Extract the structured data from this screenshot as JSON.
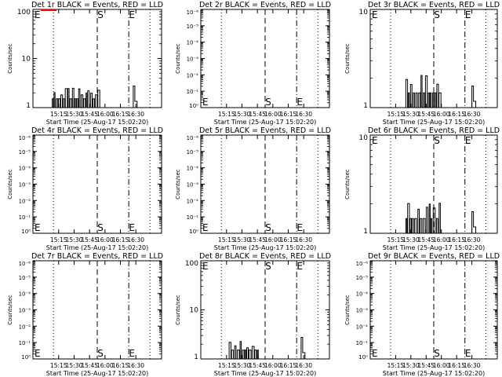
{
  "chart_data": [
    {
      "type": "line",
      "title": "Det 1r BLACK = Events, RED = LLD",
      "ylabel": "Counts/sec",
      "xlabel": "Start Time (25-Aug-17 15:02:20)",
      "yscale": "log",
      "ylim": [
        1,
        100
      ],
      "yticks": [
        "1",
        "10",
        "100"
      ],
      "xticks": [
        "15:15",
        "15:30",
        "15:45",
        "16:00",
        "16:15",
        "16:30"
      ],
      "markers": [
        {
          "label": "E",
          "pos": "left"
        },
        {
          "label": "S",
          "pos": "s"
        },
        {
          "label": "E",
          "pos": "e"
        }
      ],
      "red_lld_at_top": true,
      "series": [
        {
          "name": "BLACK",
          "color": "#000000",
          "segments": [
            [
              0.15,
              0.52,
              "dense"
            ],
            [
              0.78,
              0.81,
              "small"
            ]
          ]
        }
      ]
    },
    {
      "type": "line",
      "title": "Det 2r BLACK = Events, RED = LLD",
      "ylabel": "Counts/sec",
      "xlabel": "Start Time (25-Aug-17 15:02:20)",
      "yscale": "log",
      "ylim": [
        1,
        1e-06
      ],
      "yticks": [
        "10⁰",
        "10⁻¹",
        "10⁻²",
        "10⁻³",
        "10⁻⁴",
        "10⁻⁵",
        "10⁻⁶"
      ],
      "xticks": [
        "15:15",
        "15:30",
        "15:45",
        "16:00",
        "16:15",
        "16:30"
      ],
      "markers": [
        {
          "label": "E",
          "pos": "left-bottom"
        },
        {
          "label": "S",
          "pos": "s-bottom"
        },
        {
          "label": "E",
          "pos": "e-bottom"
        }
      ],
      "series": []
    },
    {
      "type": "line",
      "title": "Det 3r BLACK = Events, RED = LLD",
      "ylabel": "Counts/sec",
      "xlabel": "Start Time (25-Aug-17 15:02:20)",
      "yscale": "log",
      "ylim": [
        1,
        10
      ],
      "yticks": [
        "1",
        "10"
      ],
      "xticks": [
        "15:15",
        "15:30",
        "15:45",
        "16:00",
        "16:15",
        "16:30"
      ],
      "markers": [
        {
          "label": "E",
          "pos": "left"
        },
        {
          "label": "S",
          "pos": "s"
        },
        {
          "label": "E",
          "pos": "e"
        }
      ],
      "series": [
        {
          "name": "BLACK",
          "color": "#000000",
          "segments": [
            [
              0.28,
              0.55,
              "dense"
            ],
            [
              0.8,
              0.83,
              "small"
            ]
          ]
        }
      ]
    },
    {
      "type": "line",
      "title": "Det 4r BLACK = Events, RED = LLD",
      "ylabel": "Counts/sec",
      "xlabel": "Start Time (25-Aug-17 15:02:20)",
      "yscale": "log",
      "ylim": [
        1,
        1e-06
      ],
      "yticks": [
        "10⁰",
        "10⁻¹",
        "10⁻²",
        "10⁻³",
        "10⁻⁴",
        "10⁻⁵",
        "10⁻⁶"
      ],
      "xticks": [
        "15:15",
        "15:30",
        "15:45",
        "16:00",
        "16:15",
        "16:30"
      ],
      "markers": [
        {
          "label": "E",
          "pos": "left-bottom"
        },
        {
          "label": "S",
          "pos": "s-bottom"
        },
        {
          "label": "E",
          "pos": "e-bottom"
        }
      ],
      "series": []
    },
    {
      "type": "line",
      "title": "Det 5r BLACK = Events, RED = LLD",
      "ylabel": "Counts/sec",
      "xlabel": "Start Time (25-Aug-17 15:02:20)",
      "yscale": "log",
      "ylim": [
        1,
        1e-06
      ],
      "yticks": [
        "10⁰",
        "10⁻¹",
        "10⁻²",
        "10⁻³",
        "10⁻⁴",
        "10⁻⁵",
        "10⁻⁶"
      ],
      "xticks": [
        "15:15",
        "15:30",
        "15:45",
        "16:00",
        "16:15",
        "16:30"
      ],
      "markers": [
        {
          "label": "E",
          "pos": "left-bottom"
        },
        {
          "label": "S",
          "pos": "s-bottom"
        },
        {
          "label": "E",
          "pos": "e-bottom"
        }
      ],
      "series": []
    },
    {
      "type": "line",
      "title": "Det 6r BLACK = Events, RED = LLD",
      "ylabel": "Counts/sec",
      "xlabel": "Start Time (25-Aug-17 15:02:20)",
      "yscale": "log",
      "ylim": [
        1,
        10
      ],
      "yticks": [
        "1",
        "10"
      ],
      "xticks": [
        "15:15",
        "15:30",
        "15:45",
        "16:00",
        "16:15",
        "16:30"
      ],
      "markers": [
        {
          "label": "E",
          "pos": "left"
        },
        {
          "label": "S",
          "pos": "s"
        },
        {
          "label": "E",
          "pos": "e"
        }
      ],
      "series": [
        {
          "name": "BLACK",
          "color": "#000000",
          "segments": [
            [
              0.28,
              0.55,
              "dense"
            ],
            [
              0.8,
              0.83,
              "small"
            ]
          ]
        }
      ]
    },
    {
      "type": "line",
      "title": "Det 7r BLACK = Events, RED = LLD",
      "ylabel": "Counts/sec",
      "xlabel": "Start Time (25-Aug-17 15:02:20)",
      "yscale": "log",
      "ylim": [
        1,
        1e-06
      ],
      "yticks": [
        "10⁰",
        "10⁻¹",
        "10⁻²",
        "10⁻³",
        "10⁻⁴",
        "10⁻⁵",
        "10⁻⁶"
      ],
      "xticks": [
        "15:15",
        "15:30",
        "15:45",
        "16:00",
        "16:15",
        "16:30"
      ],
      "markers": [
        {
          "label": "E",
          "pos": "left-bottom"
        },
        {
          "label": "S",
          "pos": "s-bottom"
        },
        {
          "label": "E",
          "pos": "e-bottom"
        }
      ],
      "series": []
    },
    {
      "type": "line",
      "title": "Det 8r BLACK = Events, RED = LLD",
      "ylabel": "Counts/sec",
      "xlabel": "Start Time (25-Aug-17 15:02:20)",
      "yscale": "log",
      "ylim": [
        1,
        100
      ],
      "yticks": [
        "1",
        "10",
        "100"
      ],
      "xticks": [
        "15:15",
        "15:30",
        "15:45",
        "16:00",
        "16:15",
        "16:30"
      ],
      "markers": [
        {
          "label": "E",
          "pos": "left"
        },
        {
          "label": "S",
          "pos": "s"
        },
        {
          "label": "E",
          "pos": "e"
        }
      ],
      "series": [
        {
          "name": "BLACK",
          "color": "#000000",
          "segments": [
            [
              0.22,
              0.45,
              "dense"
            ],
            [
              0.78,
              0.81,
              "small"
            ]
          ]
        }
      ]
    },
    {
      "type": "line",
      "title": "Det 9r BLACK = Events, RED = LLD",
      "ylabel": "Counts/sec",
      "xlabel": "Start Time (25-Aug-17 15:02:20)",
      "yscale": "log",
      "ylim": [
        1,
        1e-06
      ],
      "yticks": [
        "10⁰",
        "10⁻¹",
        "10⁻²",
        "10⁻³",
        "10⁻⁴",
        "10⁻⁵",
        "10⁻⁶"
      ],
      "xticks": [
        "15:15",
        "15:30",
        "15:45",
        "16:00",
        "16:15",
        "16:30"
      ],
      "markers": [
        {
          "label": "E",
          "pos": "left-bottom"
        },
        {
          "label": "S",
          "pos": "s-bottom"
        },
        {
          "label": "E",
          "pos": "e-bottom"
        }
      ],
      "series": []
    }
  ]
}
